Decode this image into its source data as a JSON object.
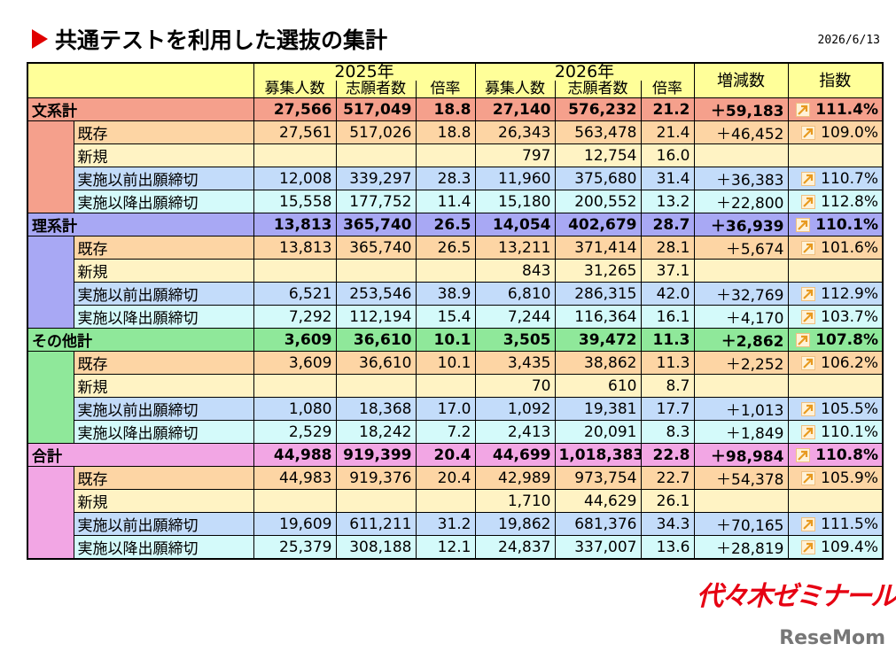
{
  "header": {
    "title": "共通テストを利用した選抜の集計",
    "date": "2026/6/13"
  },
  "table": {
    "years": [
      {
        "label": "2025年",
        "columns": [
          "募集人数",
          "志願者数",
          "倍率"
        ]
      },
      {
        "label": "2026年",
        "columns": [
          "募集人数",
          "志願者数",
          "倍率"
        ]
      }
    ],
    "change_header": "増減数",
    "index_header": "指数",
    "groups": [
      {
        "label": "文系計",
        "total": [
          "27,566",
          "517,049",
          "18.8",
          "27,140",
          "576,232",
          "21.2",
          "＋59,183",
          "111.4%"
        ],
        "rows": [
          {
            "label": "既存",
            "cells": [
              "27,561",
              "517,026",
              "18.8",
              "26,343",
              "563,478",
              "21.4",
              "＋46,452",
              "109.0%"
            ]
          },
          {
            "label": "新規",
            "cells": [
              null,
              null,
              null,
              "797",
              "12,754",
              "16.0",
              null,
              null
            ]
          },
          {
            "label": "実施以前出願締切",
            "cells": [
              "12,008",
              "339,297",
              "28.3",
              "11,960",
              "375,680",
              "31.4",
              "＋36,383",
              "110.7%"
            ]
          },
          {
            "label": "実施以降出願締切",
            "cells": [
              "15,558",
              "177,752",
              "11.4",
              "15,180",
              "200,552",
              "13.2",
              "＋22,800",
              "112.8%"
            ]
          }
        ]
      },
      {
        "label": "理系計",
        "total": [
          "13,813",
          "365,740",
          "26.5",
          "14,054",
          "402,679",
          "28.7",
          "＋36,939",
          "110.1%"
        ],
        "rows": [
          {
            "label": "既存",
            "cells": [
              "13,813",
              "365,740",
              "26.5",
              "13,211",
              "371,414",
              "28.1",
              "＋5,674",
              "101.6%"
            ]
          },
          {
            "label": "新規",
            "cells": [
              null,
              null,
              null,
              "843",
              "31,265",
              "37.1",
              null,
              null
            ]
          },
          {
            "label": "実施以前出願締切",
            "cells": [
              "6,521",
              "253,546",
              "38.9",
              "6,810",
              "286,315",
              "42.0",
              "＋32,769",
              "112.9%"
            ]
          },
          {
            "label": "実施以降出願締切",
            "cells": [
              "7,292",
              "112,194",
              "15.4",
              "7,244",
              "116,364",
              "16.1",
              "＋4,170",
              "103.7%"
            ]
          }
        ]
      },
      {
        "label": "その他計",
        "total": [
          "3,609",
          "36,610",
          "10.1",
          "3,505",
          "39,472",
          "11.3",
          "＋2,862",
          "107.8%"
        ],
        "rows": [
          {
            "label": "既存",
            "cells": [
              "3,609",
              "36,610",
              "10.1",
              "3,435",
              "38,862",
              "11.3",
              "＋2,252",
              "106.2%"
            ]
          },
          {
            "label": "新規",
            "cells": [
              null,
              null,
              null,
              "70",
              "610",
              "8.7",
              null,
              null
            ]
          },
          {
            "label": "実施以前出願締切",
            "cells": [
              "1,080",
              "18,368",
              "17.0",
              "1,092",
              "19,381",
              "17.7",
              "＋1,013",
              "105.5%"
            ]
          },
          {
            "label": "実施以降出願締切",
            "cells": [
              "2,529",
              "18,242",
              "7.2",
              "2,413",
              "20,091",
              "8.3",
              "＋1,849",
              "110.1%"
            ]
          }
        ]
      },
      {
        "label": "合計",
        "total": [
          "44,988",
          "919,399",
          "20.4",
          "44,699",
          "1,018,383",
          "22.8",
          "＋98,984",
          "110.8%"
        ],
        "rows": [
          {
            "label": "既存",
            "cells": [
              "44,983",
              "919,376",
              "20.4",
              "42,989",
              "973,754",
              "22.7",
              "＋54,378",
              "105.9%"
            ]
          },
          {
            "label": "新規",
            "cells": [
              null,
              null,
              null,
              "1,710",
              "44,629",
              "26.1",
              null,
              null
            ]
          },
          {
            "label": "実施以前出願締切",
            "cells": [
              "19,609",
              "611,211",
              "31.2",
              "19,862",
              "681,376",
              "34.3",
              "＋70,165",
              "111.5%"
            ]
          },
          {
            "label": "実施以降出願締切",
            "cells": [
              "25,379",
              "308,188",
              "12.1",
              "24,837",
              "337,007",
              "13.6",
              "＋28,819",
              "109.4%"
            ]
          }
        ]
      }
    ]
  },
  "footer": {
    "logo": "代々木ゼミナール",
    "credit": "ReseMom"
  }
}
